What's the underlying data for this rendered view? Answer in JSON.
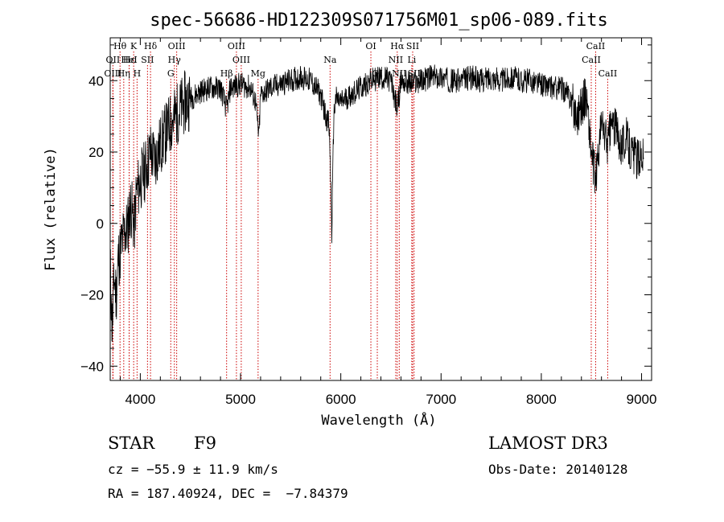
{
  "chart_data": {
    "type": "line",
    "title": "spec-56686-HD122309S071756M01_sp06-089.fits",
    "xlabel": "Wavelength (Å)",
    "ylabel": "Flux (relative)",
    "xlim": [
      3700,
      9100
    ],
    "ylim": [
      -44,
      52
    ],
    "xticks": [
      "4000",
      "5000",
      "6000",
      "7000",
      "8000",
      "9000"
    ],
    "yticks": [
      "−40",
      "−20",
      "0",
      "20",
      "40"
    ],
    "grid": false,
    "series": [
      {
        "x": [
          3700,
          3720,
          3740,
          3760,
          3780,
          3800,
          3820,
          3840,
          3860,
          3880,
          3900,
          3920,
          3940,
          3960,
          3980,
          4000,
          4050,
          4100,
          4150,
          4200,
          4250,
          4300,
          4350,
          4400,
          4450,
          4500,
          4600,
          4700,
          4800,
          4861,
          4900,
          5000,
          5100,
          5150,
          5183,
          5200,
          5300,
          5400,
          5500,
          5600,
          5700,
          5800,
          5850,
          5880,
          5895,
          5910,
          5930,
          5950,
          6000,
          6100,
          6200,
          6300,
          6400,
          6500,
          6563,
          6600,
          6700,
          6800,
          6900,
          7000,
          7100,
          7200,
          7300,
          7400,
          7500,
          7600,
          7700,
          7800,
          7900,
          8000,
          8100,
          8200,
          8300,
          8350,
          8400,
          8450,
          8498,
          8542,
          8600,
          8662,
          8700,
          8750,
          8800,
          8850,
          8900,
          8950,
          9000,
          9020
        ],
        "y": [
          -12,
          -30,
          -15,
          -20,
          -10,
          -8,
          -5,
          -3,
          -2,
          0,
          5,
          3,
          -1,
          8,
          10,
          12,
          15,
          20,
          18,
          22,
          25,
          28,
          30,
          32,
          34,
          35,
          37,
          38,
          38,
          32,
          38,
          39,
          38,
          34,
          24,
          36,
          38,
          39,
          40,
          41,
          40,
          36,
          30,
          28,
          18,
          -3,
          30,
          35,
          34,
          36,
          38,
          40,
          41,
          40,
          32,
          40,
          39,
          40,
          41,
          41,
          40,
          40,
          41,
          40,
          41,
          40,
          41,
          40,
          40,
          39,
          38,
          38,
          35,
          30,
          33,
          36,
          20,
          12,
          28,
          22,
          28,
          26,
          22,
          24,
          20,
          18,
          20,
          18
        ]
      }
    ],
    "emission_lines": [
      {
        "name": "Hθ",
        "x": 3798,
        "row": 0
      },
      {
        "name": "OII",
        "x": 3727,
        "row": 1
      },
      {
        "name": "OIII",
        "x": 3727,
        "row": 2
      },
      {
        "name": "Hε",
        "x": 3889,
        "row": 1
      },
      {
        "name": "Hη",
        "x": 3835,
        "row": 2
      },
      {
        "name": "K",
        "x": 3934,
        "row": 0
      },
      {
        "name": "HeI",
        "x": 3889,
        "row": 1
      },
      {
        "name": "H",
        "x": 3968,
        "row": 2
      },
      {
        "name": "Hδ",
        "x": 4102,
        "row": 0
      },
      {
        "name": "SII",
        "x": 4072,
        "row": 1
      },
      {
        "name": "OIII",
        "x": 4363,
        "row": 0
      },
      {
        "name": "Hγ",
        "x": 4340,
        "row": 1
      },
      {
        "name": "G",
        "x": 4304,
        "row": 2
      },
      {
        "name": "OIII",
        "x": 4959,
        "row": 0
      },
      {
        "name": "OIII",
        "x": 5007,
        "row": 1
      },
      {
        "name": "Hβ",
        "x": 4861,
        "row": 2
      },
      {
        "name": "Mg",
        "x": 5175,
        "row": 2
      },
      {
        "name": "Na",
        "x": 5893,
        "row": 1
      },
      {
        "name": "OI",
        "x": 6300,
        "row": 0
      },
      {
        "name": "OI",
        "x": 6364,
        "row": 2
      },
      {
        "name": "Hα",
        "x": 6563,
        "row": 0
      },
      {
        "name": "NII",
        "x": 6548,
        "row": 1
      },
      {
        "name": "NII",
        "x": 6583,
        "row": 2
      },
      {
        "name": "SII",
        "x": 6717,
        "row": 0
      },
      {
        "name": "Li",
        "x": 6708,
        "row": 1
      },
      {
        "name": "SII",
        "x": 6731,
        "row": 2
      },
      {
        "name": "CaII",
        "x": 8542,
        "row": 0
      },
      {
        "name": "CaII",
        "x": 8498,
        "row": 1
      },
      {
        "name": "CaII",
        "x": 8662,
        "row": 2
      }
    ],
    "line_color": "#000000",
    "marker_color": "#cc0000"
  },
  "info": {
    "object_class": "STAR",
    "subclass": "F9",
    "survey": "LAMOST DR3",
    "cz": "cz = −55.9 ± 11.9 km/s",
    "obs_date": "Obs-Date: 20140128",
    "coords": "RA = 187.40924, DEC =  −7.84379"
  }
}
